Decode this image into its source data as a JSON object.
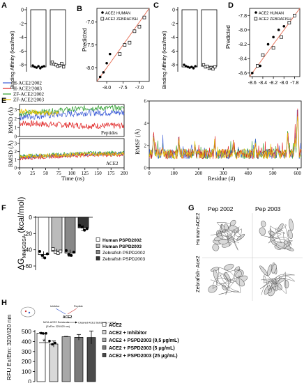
{
  "panels": {
    "a": "A",
    "b": "B",
    "c": "C",
    "d": "D",
    "e": "E",
    "f": "F",
    "g": "G",
    "h": "H"
  },
  "panel_a": {
    "ylabel": "Binding Affinity (kcal/mol)",
    "yticks": [
      "0",
      "-2",
      "-4",
      "-6",
      "-8"
    ]
  },
  "panel_b": {
    "ylabel": "Predicted",
    "legend": [
      "ACE2 HUMAN",
      "ACE2 ZEBRAFISH"
    ],
    "yticks": [
      "-7.0",
      "-7.5",
      "-8.0"
    ],
    "xticks": [
      "-8.0",
      "-7.5",
      "-7.0"
    ]
  },
  "panel_c": {
    "ylabel": "Binding Affinity (kcal/mol)",
    "yticks": [
      "0",
      "-2",
      "-4",
      "-6",
      "-8"
    ]
  },
  "panel_d": {
    "ylabel": "Predicted",
    "legend": [
      "ACE2 HUMAN",
      "ACE2 ZEBRAFISH"
    ],
    "yticks": [
      "-7.8",
      "-8.0",
      "-8.2",
      "-8.4",
      "-8.6"
    ],
    "xticks": [
      "-8.6",
      "-8.4",
      "-8.2",
      "-8.0",
      "-7.8"
    ]
  },
  "panel_e": {
    "legend": [
      "H-ACE2/2002",
      "H-ACE2/2003",
      "ZF-ACE2/2002",
      "ZF-ACE2/2003"
    ],
    "legend_colors": [
      "#3b5bd6",
      "#e02020",
      "#2a9d2a",
      "#e8c200"
    ],
    "rmsd_label": "RMSD (Å)",
    "rmsf_label": "RMSF (Å)",
    "peptides_label": "Peptides",
    "ace2_label": "ACE2",
    "time_label": "Time (ns)",
    "residue_label": "Residue (#)",
    "rmsd_yticks_top": [
      "3",
      "2",
      "1",
      "0"
    ],
    "rmsd_yticks_bot": [
      "3",
      "2",
      "1",
      "0"
    ],
    "time_ticks": [
      "0",
      "25",
      "50",
      "75",
      "100",
      "125",
      "150",
      "175",
      "200"
    ],
    "rmsf_yticks": [
      "6",
      "4",
      "2",
      "0"
    ],
    "residue_ticks": [
      "0",
      "100",
      "200",
      "300",
      "400",
      "500",
      "600"
    ]
  },
  "panel_f": {
    "ylabel_main": "ΔG",
    "ylabel_sub": "MM/GBSA",
    "ylabel_unit": "(kcal/mol)",
    "yticks": [
      "0",
      "-20",
      "-40",
      "-60"
    ],
    "legend": [
      "Human PSPD2002",
      "Human PSPD2003",
      "Zebrafish PSPD2002",
      "Zebrafish PSPD2003"
    ]
  },
  "panel_g": {
    "col1": "Pep 2002",
    "col2": "Pep 2003",
    "row1": "Human-ACE2",
    "row2": "Zebrafish- Ace2"
  },
  "panel_h": {
    "ylabel": "RFU Ex/Em: 320/420 nm",
    "yticks": [
      "500",
      "400",
      "300",
      "200",
      "100",
      "0"
    ],
    "significance": "*",
    "legend": [
      "ACE2",
      "ACE2 + Inhibitor",
      "ACE2 + PSPD2003 (0,5 μg/mL)",
      "ACE2 + PSPD2003 (5 μg/mL)",
      "ACE2 + PSPD2003 (25 μg/mL)"
    ],
    "schema": {
      "inhibitor": "Inhibitor",
      "peptide": "Peptide",
      "enzyme": "ACE2",
      "substrate": "MCA-ACE2 Substrate",
      "exem": "(Ex/Em: 320/420 nm)",
      "product": "Cleaved ACE2 Substrate + MCA"
    }
  },
  "chart_data": [
    {
      "type": "bar",
      "panel": "A",
      "categories": [
        "H-ACE2",
        "ZF-ACE2"
      ],
      "values": [
        -8.3,
        -8.0
      ],
      "points": [
        [
          -8.1,
          -8.3,
          -8.4,
          -8.2,
          -8.5,
          -8.3,
          -8.2
        ],
        [
          -7.6,
          -7.9,
          -8.0,
          -8.2,
          -8.1,
          -7.8,
          -8.3
        ]
      ],
      "ylim": [
        -9,
        0
      ]
    },
    {
      "type": "scatter",
      "panel": "B",
      "series": [
        {
          "name": "ACE2 HUMAN",
          "x": [
            -8.2,
            -8.1,
            -8.0,
            -7.9
          ],
          "y": [
            -8.2,
            -8.1,
            -7.9,
            -7.7
          ]
        },
        {
          "name": "ACE2 ZEBRAFISH",
          "x": [
            -7.6,
            -7.45,
            -7.3,
            -7.15,
            -7.0,
            -6.85
          ],
          "y": [
            -7.7,
            -7.5,
            -7.45,
            -7.2,
            -7.1,
            -6.9
          ]
        }
      ],
      "xlim": [
        -8.3,
        -6.7
      ],
      "ylim": [
        -8.3,
        -6.7
      ]
    },
    {
      "type": "bar",
      "panel": "C",
      "categories": [
        "H-ACE2",
        "ZF-ACE2"
      ],
      "values": [
        -8.3,
        -8.2
      ],
      "points": [
        [
          -8.0,
          -8.2,
          -8.3,
          -8.4,
          -8.3,
          -8.5,
          -8.2
        ],
        [
          -8.0,
          -8.3,
          -8.2,
          -8.5,
          -8.4,
          -8.6,
          -8.3
        ]
      ],
      "ylim": [
        -9,
        0
      ]
    },
    {
      "type": "scatter",
      "panel": "D",
      "series": [
        {
          "name": "ACE2 HUMAN",
          "x": [
            -8.6,
            -8.45,
            -8.3,
            -8.2,
            -8.1,
            -8.0
          ],
          "y": [
            -8.6,
            -8.5,
            -8.2,
            -8.1,
            -8.0,
            -7.95
          ]
        },
        {
          "name": "ACE2 ZEBRAFISH",
          "x": [
            -8.5,
            -8.4,
            -8.2,
            -8.05,
            -7.9,
            -7.8
          ],
          "y": [
            -8.5,
            -8.35,
            -8.25,
            -8.1,
            -7.9,
            -7.8
          ]
        }
      ],
      "xlim": [
        -8.65,
        -7.7
      ],
      "ylim": [
        -8.65,
        -7.7
      ]
    },
    {
      "type": "bar",
      "panel": "F",
      "categories": [
        "Human PSPD2002",
        "Human PSPD2003",
        "Zebrafish PSPD2002",
        "Zebrafish PSPD2003"
      ],
      "values": [
        -46,
        -42,
        -44,
        -13
      ],
      "errors": [
        4,
        3,
        4,
        3
      ],
      "points": [
        [
          -42,
          -47,
          -50,
          -45
        ],
        [
          -39,
          -43,
          -44,
          -42
        ],
        [
          -41,
          -46,
          -47,
          -43
        ],
        [
          -10,
          -12,
          -16,
          -14
        ]
      ],
      "colors": [
        "#ffffff",
        "#bbbbbb",
        "#888888",
        "#333333"
      ],
      "ylim": [
        -60,
        0
      ]
    },
    {
      "type": "bar",
      "panel": "H",
      "categories": [
        "ACE2",
        "ACE2 + Inhibitor",
        "ACE2 + PSPD2003 (0,5 μg/mL)",
        "ACE2 + PSPD2003 (5 μg/mL)",
        "ACE2 + PSPD2003 (25 μg/mL)"
      ],
      "values": [
        483,
        375,
        448,
        442,
        440
      ],
      "errors": [
        5,
        30,
        3,
        28,
        65
      ],
      "colors": [
        "#ffffff",
        "#d8d8d8",
        "#a8a8a8",
        "#7a7a7a",
        "#4a4a4a"
      ],
      "ylim": [
        0,
        500
      ]
    }
  ]
}
